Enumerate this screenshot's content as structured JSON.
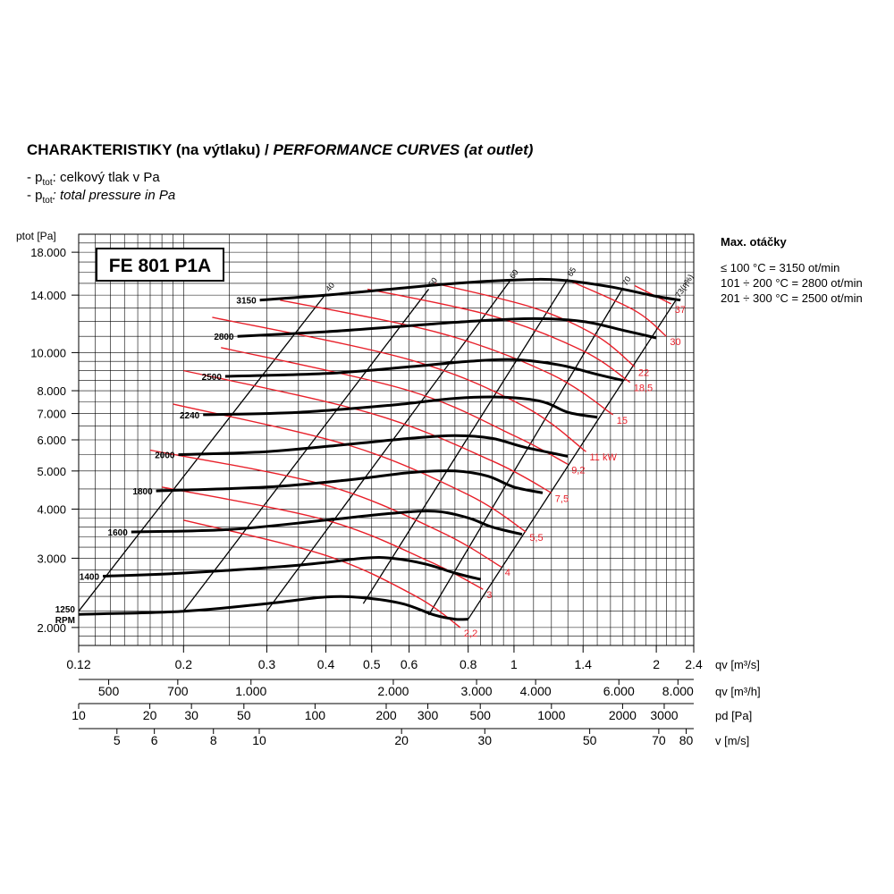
{
  "header": {
    "title_cz": "CHARAKTERISTIKY (na výtlaku) / ",
    "title_en": "PERFORMANCE CURVES (at outlet)",
    "line1_prefix": "- p",
    "line1_sub": "tot",
    "line1_text": ": celkový tlak v Pa",
    "line2_prefix": "- p",
    "line2_sub": "tot",
    "line2_text": ": total pressure in Pa"
  },
  "max_speed": {
    "title": "Max. otáčky",
    "lines": [
      "≤ 100 °C = 3150 ot/min",
      "101 ÷ 200 °C = 2800 ot/min",
      "201 ÷ 300 °C = 2500 ot/min"
    ]
  },
  "colors": {
    "speed_curve": "#000000",
    "power_curve": "#e8202a",
    "grid": "#000000"
  },
  "chart_data": {
    "type": "line",
    "title": "FE 801 P1A",
    "y_axis": {
      "label": "ptot [Pa]",
      "scale": "log",
      "range": [
        1800,
        20000
      ],
      "tick_values": [
        2000,
        3000,
        4000,
        5000,
        6000,
        7000,
        8000,
        10000,
        14000,
        18000
      ],
      "tick_labels": [
        "2.000",
        "3.000",
        "4.000",
        "5.000",
        "6.000",
        "7.000",
        "8.000",
        "10.000",
        "14.000",
        "18.000"
      ]
    },
    "x_axis": {
      "label": "qv [m³/s]",
      "scale": "log",
      "range": [
        0.12,
        2.4
      ],
      "tick_values": [
        0.12,
        0.2,
        0.3,
        0.4,
        0.5,
        0.6,
        0.8,
        1,
        1.4,
        2,
        2.4
      ],
      "tick_labels": [
        "0.12",
        "0.2",
        "0.3",
        "0.4",
        "0.5",
        "0.6",
        "0.8",
        "1",
        "1.4",
        "2",
        "2.4"
      ]
    },
    "secondary_axes": [
      {
        "label": "qv [m³/h]",
        "values": [
          500,
          700,
          1000,
          2000,
          3000,
          4000,
          6000,
          8000
        ],
        "labels": [
          "500",
          "700",
          "1.000",
          "2.000",
          "3.000",
          "4.000",
          "6.000",
          "8.000"
        ]
      },
      {
        "label": "pd [Pa]",
        "values": [
          10,
          20,
          30,
          50,
          100,
          200,
          300,
          500,
          1000,
          2000,
          3000
        ],
        "labels": [
          "10",
          "20",
          "30",
          "50",
          "100",
          "200",
          "300",
          "500",
          "1000",
          "2000",
          "3000"
        ]
      },
      {
        "label": "v [m/s]",
        "values": [
          5,
          6,
          8,
          10,
          20,
          30,
          50,
          70,
          80
        ],
        "labels": [
          "5",
          "6",
          "8",
          "10",
          "20",
          "30",
          "50",
          "70",
          "80"
        ]
      }
    ],
    "speed_series": [
      {
        "name": "3150",
        "points": [
          [
            0.29,
            13600
          ],
          [
            0.4,
            14000
          ],
          [
            0.55,
            14500
          ],
          [
            0.75,
            15000
          ],
          [
            1.0,
            15300
          ],
          [
            1.25,
            15300
          ],
          [
            1.6,
            14700
          ],
          [
            2.0,
            13900
          ],
          [
            2.25,
            13600
          ]
        ]
      },
      {
        "name": "2800",
        "points": [
          [
            0.26,
            11000
          ],
          [
            0.4,
            11300
          ],
          [
            0.6,
            11700
          ],
          [
            0.8,
            12000
          ],
          [
            1.1,
            12200
          ],
          [
            1.4,
            12000
          ],
          [
            1.7,
            11400
          ],
          [
            2.0,
            10900
          ]
        ]
      },
      {
        "name": "2500",
        "points": [
          [
            0.245,
            8700
          ],
          [
            0.4,
            8850
          ],
          [
            0.6,
            9200
          ],
          [
            0.8,
            9500
          ],
          [
            1.0,
            9600
          ],
          [
            1.25,
            9300
          ],
          [
            1.5,
            8800
          ],
          [
            1.7,
            8500
          ]
        ]
      },
      {
        "name": "2240",
        "points": [
          [
            0.22,
            6950
          ],
          [
            0.35,
            7050
          ],
          [
            0.55,
            7350
          ],
          [
            0.75,
            7650
          ],
          [
            0.95,
            7700
          ],
          [
            1.15,
            7500
          ],
          [
            1.3,
            7050
          ],
          [
            1.5,
            6850
          ]
        ]
      },
      {
        "name": "2000",
        "points": [
          [
            0.195,
            5500
          ],
          [
            0.3,
            5600
          ],
          [
            0.45,
            5850
          ],
          [
            0.6,
            6050
          ],
          [
            0.75,
            6150
          ],
          [
            0.9,
            6050
          ],
          [
            1.05,
            5750
          ],
          [
            1.3,
            5450
          ]
        ]
      },
      {
        "name": "1800",
        "points": [
          [
            0.175,
            4450
          ],
          [
            0.3,
            4550
          ],
          [
            0.45,
            4750
          ],
          [
            0.6,
            4950
          ],
          [
            0.75,
            5000
          ],
          [
            0.88,
            4850
          ],
          [
            1.0,
            4550
          ],
          [
            1.15,
            4400
          ]
        ]
      },
      {
        "name": "1600",
        "points": [
          [
            0.155,
            3500
          ],
          [
            0.25,
            3550
          ],
          [
            0.4,
            3750
          ],
          [
            0.55,
            3900
          ],
          [
            0.68,
            3950
          ],
          [
            0.8,
            3800
          ],
          [
            0.9,
            3600
          ],
          [
            1.04,
            3450
          ]
        ]
      },
      {
        "name": "1400",
        "points": [
          [
            0.135,
            2700
          ],
          [
            0.2,
            2750
          ],
          [
            0.35,
            2880
          ],
          [
            0.48,
            3000
          ],
          [
            0.55,
            3000
          ],
          [
            0.65,
            2900
          ],
          [
            0.75,
            2750
          ],
          [
            0.85,
            2650
          ]
        ]
      },
      {
        "name": "1250 RPM",
        "points": [
          [
            0.12,
            2160
          ],
          [
            0.2,
            2200
          ],
          [
            0.3,
            2300
          ],
          [
            0.4,
            2390
          ],
          [
            0.48,
            2380
          ],
          [
            0.58,
            2300
          ],
          [
            0.68,
            2150
          ],
          [
            0.75,
            2100
          ],
          [
            0.8,
            2100
          ]
        ]
      }
    ],
    "efficiency_lines": [
      {
        "name": "40",
        "points": [
          [
            0.12,
            2200
          ],
          [
            0.4,
            14100
          ]
        ]
      },
      {
        "name": "50",
        "points": [
          [
            0.2,
            2200
          ],
          [
            0.66,
            14500
          ]
        ]
      },
      {
        "name": "60",
        "points": [
          [
            0.3,
            2200
          ],
          [
            0.98,
            15200
          ]
        ]
      },
      {
        "name": "65",
        "points": [
          [
            0.48,
            2300
          ],
          [
            1.3,
            15400
          ]
        ]
      },
      {
        "name": "70",
        "points": [
          [
            0.66,
            2150
          ],
          [
            1.7,
            14600
          ]
        ]
      },
      {
        "name": "73(η%)",
        "points": [
          [
            0.8,
            2100
          ],
          [
            2.2,
            13600
          ]
        ]
      }
    ],
    "power_series": [
      {
        "name": "2,2",
        "points": [
          [
            0.2,
            3750
          ],
          [
            0.4,
            3050
          ],
          [
            0.62,
            2400
          ],
          [
            0.77,
            2000
          ]
        ]
      },
      {
        "name": "3",
        "points": [
          [
            0.18,
            4550
          ],
          [
            0.4,
            3750
          ],
          [
            0.66,
            2950
          ],
          [
            0.86,
            2500
          ]
        ]
      },
      {
        "name": "4",
        "points": [
          [
            0.17,
            5650
          ],
          [
            0.4,
            4600
          ],
          [
            0.7,
            3500
          ],
          [
            0.94,
            2850
          ]
        ]
      },
      {
        "name": "5,5",
        "points": [
          [
            0.19,
            7400
          ],
          [
            0.45,
            5800
          ],
          [
            0.8,
            4350
          ],
          [
            1.06,
            3500
          ]
        ]
      },
      {
        "name": "7,5",
        "points": [
          [
            0.2,
            9000
          ],
          [
            0.5,
            7000
          ],
          [
            0.9,
            5300
          ],
          [
            1.2,
            4400
          ]
        ]
      },
      {
        "name": "9,2",
        "points": [
          [
            0.24,
            10300
          ],
          [
            0.6,
            8000
          ],
          [
            1.0,
            6150
          ],
          [
            1.3,
            5200
          ]
        ]
      },
      {
        "name": "11 kW",
        "points": [
          [
            0.23,
            12300
          ],
          [
            0.6,
            9600
          ],
          [
            1.05,
            7300
          ],
          [
            1.42,
            5600
          ]
        ]
      },
      {
        "name": "15",
        "points": [
          [
            0.32,
            13600
          ],
          [
            0.7,
            11200
          ],
          [
            1.2,
            8800
          ],
          [
            1.62,
            6950
          ]
        ]
      },
      {
        "name": "18,5",
        "points": [
          [
            0.49,
            14500
          ],
          [
            0.9,
            12400
          ],
          [
            1.4,
            10100
          ],
          [
            1.76,
            8400
          ]
        ]
      },
      {
        "name": "22",
        "points": [
          [
            0.68,
            15000
          ],
          [
            1.1,
            13000
          ],
          [
            1.5,
            11000
          ],
          [
            1.8,
            9200
          ]
        ]
      },
      {
        "name": "30",
        "points": [
          [
            1.3,
            15300
          ],
          [
            1.8,
            12800
          ],
          [
            2.1,
            11000
          ]
        ]
      },
      {
        "name": "37",
        "points": [
          [
            1.8,
            14800
          ],
          [
            2.15,
            13300
          ]
        ]
      }
    ]
  }
}
